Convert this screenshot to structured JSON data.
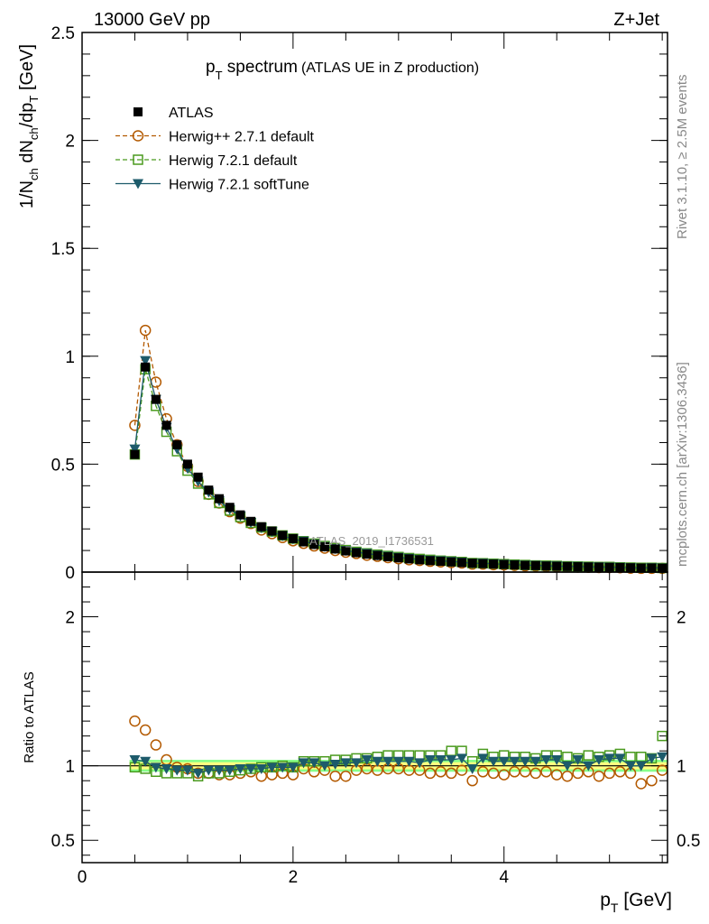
{
  "header": {
    "left": "13000 GeV pp",
    "right": "Z+Jet"
  },
  "side_labels": {
    "rivet": "Rivet 3.1.10, ≥ 2.5M events",
    "mcplots": "mcplots.cern.ch [arXiv:1306.3436]"
  },
  "watermark": "ATLAS_2019_I1736531",
  "colors": {
    "atlas": "#000000",
    "herwigpp": "#b35900",
    "herwig721": "#4a9a1e",
    "softtune": "#1d5b6b",
    "band_inner": "#ffff80",
    "band_outer": "#88ff88"
  },
  "chart_data": [
    {
      "type": "scatter",
      "title": "p_T spectrum (ATLAS UE in Z production)",
      "title_main": "p",
      "title_sub": "T",
      "title_word": " spectrum",
      "title_paren": "(ATLAS UE in Z production)",
      "ylabel": "1/N_ch dN_ch/dp_T [GeV]",
      "ylim": [
        0,
        2.5
      ],
      "xlim": [
        0,
        5.55
      ],
      "y_ticks": [
        {
          "v": 0,
          "label": "0"
        },
        {
          "v": 0.5,
          "label": "0.5"
        },
        {
          "v": 1,
          "label": "1"
        },
        {
          "v": 1.5,
          "label": "1.5"
        },
        {
          "v": 2,
          "label": "2"
        },
        {
          "v": 2.5,
          "label": "2.5"
        }
      ],
      "legend_position": "top-left",
      "x": [
        0.5,
        0.6,
        0.7,
        0.8,
        0.9,
        1.0,
        1.1,
        1.2,
        1.3,
        1.4,
        1.5,
        1.6,
        1.7,
        1.8,
        1.9,
        2.0,
        2.1,
        2.2,
        2.3,
        2.4,
        2.5,
        2.6,
        2.7,
        2.8,
        2.9,
        3.0,
        3.1,
        3.2,
        3.3,
        3.4,
        3.5,
        3.6,
        3.7,
        3.8,
        3.9,
        4.0,
        4.1,
        4.2,
        4.3,
        4.4,
        4.5,
        4.6,
        4.7,
        4.8,
        4.9,
        5.0,
        5.1,
        5.2,
        5.3,
        5.4,
        5.5
      ],
      "series": [
        {
          "name": "ATLAS",
          "marker": "square-filled",
          "values": [
            0.545,
            0.95,
            0.8,
            0.68,
            0.59,
            0.5,
            0.44,
            0.38,
            0.34,
            0.3,
            0.265,
            0.235,
            0.21,
            0.19,
            0.17,
            0.155,
            0.14,
            0.128,
            0.117,
            0.107,
            0.098,
            0.09,
            0.083,
            0.077,
            0.071,
            0.066,
            0.061,
            0.057,
            0.053,
            0.05,
            0.047,
            0.044,
            0.041,
            0.039,
            0.037,
            0.035,
            0.033,
            0.031,
            0.03,
            0.028,
            0.027,
            0.026,
            0.025,
            0.024,
            0.023,
            0.022,
            0.021,
            0.02,
            0.019,
            0.019,
            0.018
          ]
        },
        {
          "name": "Herwig++ 2.7.1 default",
          "marker": "circle-open",
          "values": [
            0.68,
            1.12,
            0.88,
            0.71,
            0.59,
            0.49,
            0.42,
            0.36,
            0.32,
            0.28,
            0.25,
            0.225,
            0.195,
            0.178,
            0.16,
            0.145,
            0.133,
            0.121,
            0.111,
            0.1,
            0.092,
            0.086,
            0.078,
            0.073,
            0.067,
            0.062,
            0.057,
            0.054,
            0.05,
            0.047,
            0.044,
            0.042,
            0.037,
            0.037,
            0.034,
            0.033,
            0.031,
            0.029,
            0.028,
            0.026,
            0.025,
            0.024,
            0.023,
            0.022,
            0.021,
            0.021,
            0.02,
            0.018,
            0.017,
            0.017,
            0.017
          ]
        },
        {
          "name": "Herwig 7.2.1 default",
          "marker": "square-open",
          "values": [
            0.545,
            0.94,
            0.77,
            0.65,
            0.56,
            0.47,
            0.41,
            0.36,
            0.32,
            0.285,
            0.255,
            0.228,
            0.207,
            0.188,
            0.17,
            0.155,
            0.143,
            0.132,
            0.121,
            0.111,
            0.102,
            0.094,
            0.087,
            0.081,
            0.075,
            0.07,
            0.065,
            0.061,
            0.057,
            0.053,
            0.05,
            0.047,
            0.042,
            0.041,
            0.039,
            0.037,
            0.035,
            0.033,
            0.031,
            0.03,
            0.029,
            0.027,
            0.026,
            0.025,
            0.024,
            0.024,
            0.022,
            0.021,
            0.02,
            0.02,
            0.019
          ]
        },
        {
          "name": "Herwig 7.2.1 softTune",
          "marker": "triangle-down-filled",
          "values": [
            0.57,
            0.98,
            0.8,
            0.67,
            0.57,
            0.48,
            0.42,
            0.37,
            0.33,
            0.29,
            0.26,
            0.23,
            0.205,
            0.187,
            0.168,
            0.153,
            0.143,
            0.13,
            0.118,
            0.108,
            0.1,
            0.092,
            0.086,
            0.079,
            0.073,
            0.068,
            0.063,
            0.058,
            0.055,
            0.052,
            0.049,
            0.046,
            0.04,
            0.041,
            0.038,
            0.036,
            0.034,
            0.032,
            0.031,
            0.029,
            0.028,
            0.026,
            0.026,
            0.024,
            0.024,
            0.023,
            0.022,
            0.02,
            0.019,
            0.02,
            0.019
          ]
        }
      ]
    },
    {
      "type": "scatter",
      "ylabel": "Ratio to ATLAS",
      "xlabel": "p_T [GeV]",
      "xlabel_main": "p",
      "xlabel_sub": "T",
      "xlabel_unit": " [GeV]",
      "ylim": [
        0.35,
        2.3
      ],
      "xlim": [
        0,
        5.55
      ],
      "x_ticks": [
        {
          "v": 0,
          "label": "0"
        },
        {
          "v": 2,
          "label": "2"
        },
        {
          "v": 4,
          "label": "4"
        }
      ],
      "y_ticks": [
        {
          "v": 0.5,
          "label": "0.5"
        },
        {
          "v": 1,
          "label": "1"
        },
        {
          "v": 2,
          "label": "2"
        }
      ],
      "x": [
        0.5,
        0.6,
        0.7,
        0.8,
        0.9,
        1.0,
        1.1,
        1.2,
        1.3,
        1.4,
        1.5,
        1.6,
        1.7,
        1.8,
        1.9,
        2.0,
        2.1,
        2.2,
        2.3,
        2.4,
        2.5,
        2.6,
        2.7,
        2.8,
        2.9,
        3.0,
        3.1,
        3.2,
        3.3,
        3.4,
        3.5,
        3.6,
        3.7,
        3.8,
        3.9,
        4.0,
        4.1,
        4.2,
        4.3,
        4.4,
        4.5,
        4.6,
        4.7,
        4.8,
        4.9,
        5.0,
        5.1,
        5.2,
        5.3,
        5.4,
        5.5
      ],
      "band_half_width": 0.04,
      "series": [
        {
          "name": "Herwig++ 2.7.1 default",
          "marker": "circle-open",
          "values": [
            1.3,
            1.24,
            1.14,
            1.04,
            0.99,
            0.98,
            0.95,
            0.95,
            0.94,
            0.94,
            0.95,
            0.96,
            0.93,
            0.94,
            0.95,
            0.94,
            0.98,
            0.96,
            0.97,
            0.93,
            0.93,
            0.97,
            0.98,
            0.97,
            0.98,
            0.98,
            0.97,
            0.97,
            0.95,
            0.96,
            0.95,
            0.97,
            0.9,
            0.96,
            0.95,
            0.94,
            0.96,
            0.96,
            0.95,
            0.96,
            0.94,
            0.93,
            0.95,
            0.96,
            0.93,
            0.95,
            0.96,
            0.95,
            0.88,
            0.9,
            0.97
          ]
        },
        {
          "name": "Herwig 7.2.1 default",
          "marker": "square-open",
          "values": [
            0.99,
            0.98,
            0.96,
            0.95,
            0.95,
            0.95,
            0.93,
            0.95,
            0.95,
            0.96,
            0.97,
            0.98,
            0.99,
            0.99,
            1.0,
            0.99,
            1.03,
            1.03,
            1.03,
            1.04,
            1.04,
            1.05,
            1.05,
            1.06,
            1.07,
            1.07,
            1.07,
            1.07,
            1.07,
            1.07,
            1.1,
            1.1,
            1.03,
            1.08,
            1.06,
            1.07,
            1.06,
            1.06,
            1.05,
            1.07,
            1.07,
            1.06,
            1.05,
            1.07,
            1.06,
            1.07,
            1.08,
            1.06,
            1.06,
            1.05,
            1.2
          ]
        },
        {
          "name": "Herwig 7.2.1 softTune",
          "marker": "triangle-down-filled",
          "values": [
            1.04,
            1.03,
            0.99,
            0.98,
            0.97,
            0.97,
            0.95,
            0.97,
            0.97,
            0.97,
            0.98,
            0.98,
            0.98,
            0.99,
            0.99,
            0.99,
            1.02,
            1.02,
            1.0,
            1.01,
            1.02,
            1.02,
            1.04,
            1.03,
            1.03,
            1.03,
            1.03,
            1.02,
            1.04,
            1.04,
            1.04,
            1.05,
            0.98,
            1.05,
            1.03,
            1.03,
            1.03,
            1.03,
            1.03,
            1.04,
            1.04,
            1.0,
            1.04,
            1.0,
            1.04,
            1.05,
            1.05,
            1.0,
            1.0,
            1.05,
            1.06
          ]
        }
      ]
    }
  ]
}
